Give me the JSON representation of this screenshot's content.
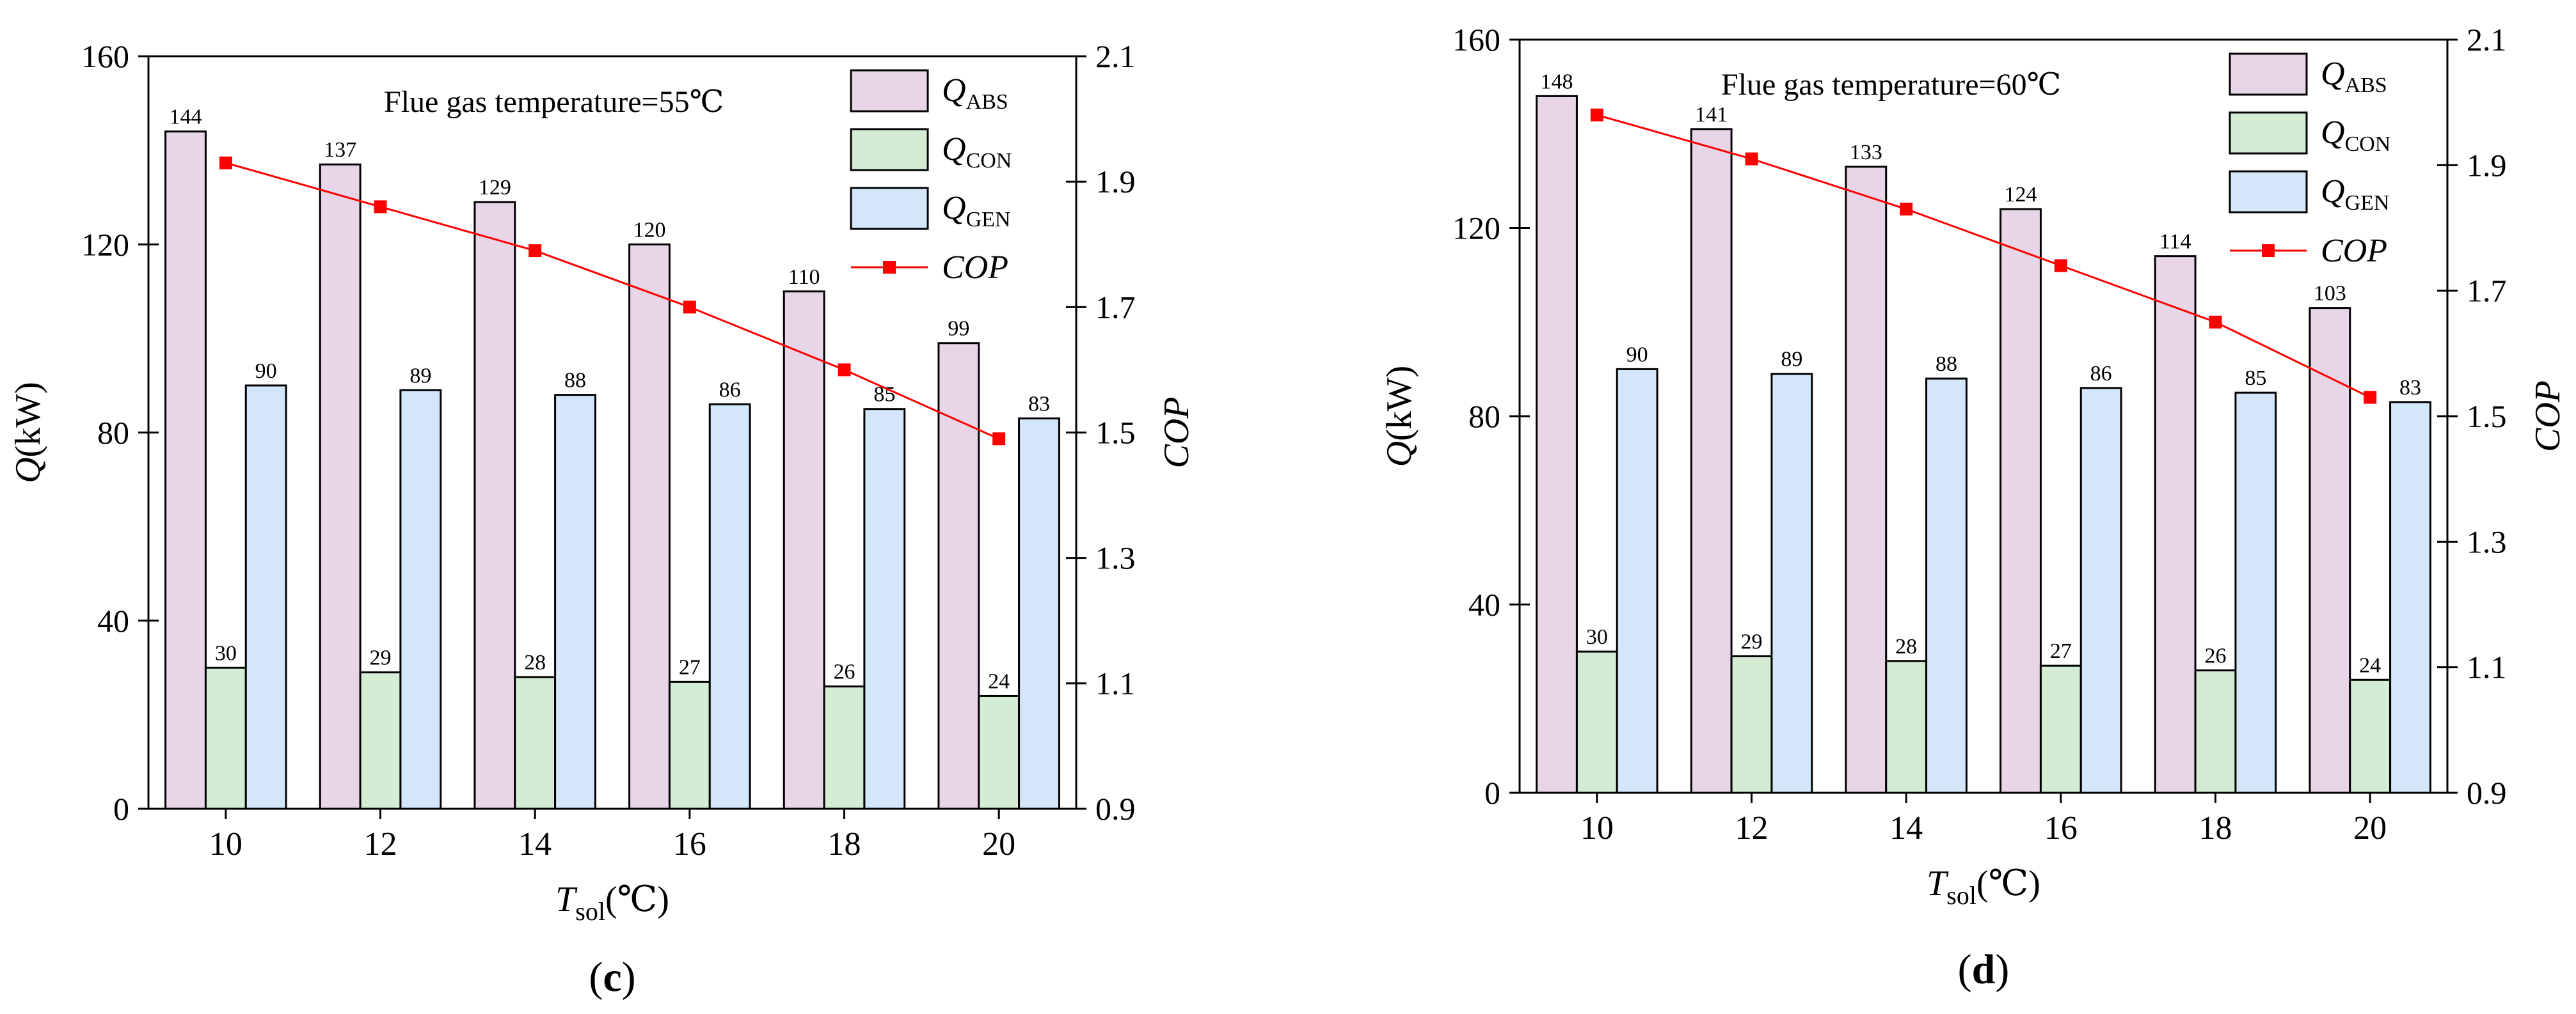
{
  "colors": {
    "abs": "#e8d5e8",
    "con": "#d4ecd4",
    "gen": "#d4e6fa",
    "cop": "#ff0000",
    "bar_stroke": "#000000"
  },
  "chart_data": [
    {
      "type": "bar",
      "panel_label": "c",
      "annotation": "Flue gas temperature=55℃",
      "categories": [
        "10",
        "12",
        "14",
        "16",
        "18",
        "20"
      ],
      "xlabel_main": "T",
      "xlabel_sub": "sol",
      "xlabel_unit": "(℃)",
      "ylabel_left_main": "Q",
      "ylabel_left_unit": "(kW)",
      "ylabel_right": "COP",
      "ylim_left": [
        0,
        160
      ],
      "yticks_left": [
        "0",
        "40",
        "80",
        "120",
        "160"
      ],
      "ylim_right": [
        0.9,
        2.1
      ],
      "yticks_right": [
        "0.9",
        "1.1",
        "1.3",
        "1.5",
        "1.7",
        "1.9",
        "2.1"
      ],
      "series": [
        {
          "name": "Q",
          "sub": "ABS",
          "key": "abs",
          "values": [
            144,
            137,
            129,
            120,
            110,
            99
          ]
        },
        {
          "name": "Q",
          "sub": "CON",
          "key": "con",
          "values": [
            30,
            29,
            28,
            27,
            26,
            24
          ]
        },
        {
          "name": "Q",
          "sub": "GEN",
          "key": "gen",
          "values": [
            90,
            89,
            88,
            86,
            85,
            83
          ]
        }
      ],
      "line_series": {
        "name": "COP",
        "values": [
          1.93,
          1.86,
          1.79,
          1.7,
          1.6,
          1.49
        ]
      }
    },
    {
      "type": "bar",
      "panel_label": "d",
      "annotation": "Flue gas temperature=60℃",
      "categories": [
        "10",
        "12",
        "14",
        "16",
        "18",
        "20"
      ],
      "xlabel_main": "T",
      "xlabel_sub": "sol",
      "xlabel_unit": "(℃)",
      "ylabel_left_main": "Q",
      "ylabel_left_unit": "(kW)",
      "ylabel_right": "COP",
      "ylim_left": [
        0,
        160
      ],
      "yticks_left": [
        "0",
        "40",
        "80",
        "120",
        "160"
      ],
      "ylim_right": [
        0.9,
        2.1
      ],
      "yticks_right": [
        "0.9",
        "1.1",
        "1.3",
        "1.5",
        "1.7",
        "1.9",
        "2.1"
      ],
      "series": [
        {
          "name": "Q",
          "sub": "ABS",
          "key": "abs",
          "values": [
            148,
            141,
            133,
            124,
            114,
            103
          ]
        },
        {
          "name": "Q",
          "sub": "CON",
          "key": "con",
          "values": [
            30,
            29,
            28,
            27,
            26,
            24
          ]
        },
        {
          "name": "Q",
          "sub": "GEN",
          "key": "gen",
          "values": [
            90,
            89,
            88,
            86,
            85,
            83
          ]
        }
      ],
      "line_series": {
        "name": "COP",
        "values": [
          1.98,
          1.91,
          1.83,
          1.74,
          1.65,
          1.53
        ]
      }
    }
  ]
}
